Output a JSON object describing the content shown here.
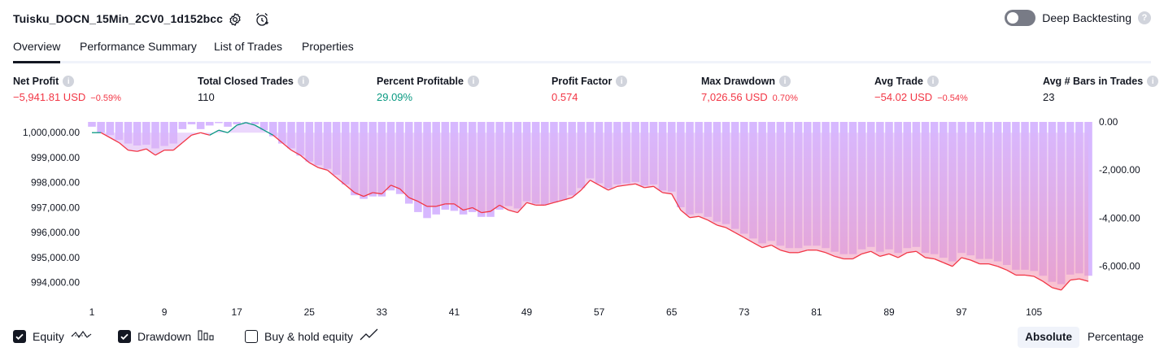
{
  "header": {
    "strategy_name": "Tuisku_DOCN_15Min_2CV0_1d152bcc",
    "deep_backtesting_label": "Deep Backtesting",
    "help_glyph": "?",
    "icons": [
      "settings-icon",
      "add-alert-icon"
    ]
  },
  "tabs": [
    {
      "label": "Overview",
      "active": true
    },
    {
      "label": "Performance Summary",
      "active": false
    },
    {
      "label": "List of Trades",
      "active": false
    },
    {
      "label": "Properties",
      "active": false
    }
  ],
  "metrics": [
    {
      "label": "Net Profit",
      "value": "−5,941.81 USD",
      "pct": "−0.59%",
      "color": "#f23645"
    },
    {
      "label": "Total Closed Trades",
      "value": "110",
      "pct": "",
      "color": "#131722"
    },
    {
      "label": "Percent Profitable",
      "value": "29.09%",
      "pct": "",
      "color": "#089981"
    },
    {
      "label": "Profit Factor",
      "value": "0.574",
      "pct": "",
      "color": "#f23645"
    },
    {
      "label": "Max Drawdown",
      "value": "7,026.56 USD",
      "pct": "0.70%",
      "color": "#f23645"
    },
    {
      "label": "Avg Trade",
      "value": "−54.02 USD",
      "pct": "−0.54%",
      "color": "#f23645"
    },
    {
      "label": "Avg # Bars in Trades",
      "value": "23",
      "pct": "",
      "color": "#131722"
    }
  ],
  "info_glyph": "i",
  "chart_data": {
    "type": "line",
    "equity_axis": {
      "tick_labels": [
        "1,000,000.00",
        "999,000.00",
        "998,000.00",
        "997,000.00",
        "996,000.00",
        "995,000.00",
        "994,000.00"
      ],
      "ticks": [
        1000000,
        999000,
        998000,
        997000,
        996000,
        995000,
        994000
      ],
      "ylim": [
        993600,
        1000430
      ]
    },
    "drawdown_axis": {
      "tick_labels": [
        "0.00",
        "-2,000.00",
        "-4,000.00",
        "-6,000.00"
      ],
      "ticks": [
        0,
        -2000,
        -4000,
        -6000
      ],
      "ylim": [
        -7100,
        0
      ]
    },
    "x_tick_labels": [
      "1",
      "9",
      "17",
      "25",
      "33",
      "41",
      "49",
      "57",
      "65",
      "73",
      "81",
      "89",
      "97",
      "105"
    ],
    "x_ticks": [
      1,
      9,
      17,
      25,
      33,
      41,
      49,
      57,
      65,
      73,
      81,
      89,
      97,
      105
    ],
    "xlim": [
      1,
      111
    ],
    "series": [
      {
        "name": "Equity",
        "color_above": "#089981",
        "color_below": "#f23645",
        "baseline": 1000000,
        "values": [
          1000000,
          1000000,
          999800,
          999600,
          999300,
          999250,
          999350,
          999100,
          999300,
          999300,
          999600,
          999900,
          1000000,
          999900,
          1000100,
          1000000,
          1000300,
          1000400,
          1000300,
          1000100,
          999900,
          999600,
          999300,
          999100,
          998800,
          998600,
          998500,
          998200,
          997900,
          997600,
          997450,
          997600,
          997550,
          997900,
          997750,
          997400,
          997250,
          997050,
          997050,
          997150,
          997150,
          996900,
          997000,
          996800,
          996850,
          997100,
          996900,
          996800,
          997200,
          997100,
          997100,
          997200,
          997300,
          997400,
          997700,
          998100,
          997900,
          997700,
          997850,
          997900,
          997950,
          997800,
          997850,
          997600,
          997550,
          996900,
          996600,
          996650,
          996500,
          996300,
          996200,
          996000,
          995800,
          995600,
          995400,
          995500,
          995300,
          995200,
          995200,
          995300,
          995300,
          995200,
          995050,
          994950,
          994950,
          995150,
          995250,
          995050,
          995150,
          995000,
          995200,
          995250,
          995000,
          994950,
          994800,
          994650,
          995000,
          994900,
          994750,
          994750,
          994650,
          994500,
          994300,
          994300,
          994250,
          994050,
          993800,
          993700,
          994100,
          994150,
          994050
        ]
      },
      {
        "name": "Drawdown",
        "color": "#c9a0ff",
        "type": "bar",
        "values": [
          -200,
          -450,
          -550,
          -750,
          -900,
          -980,
          -950,
          -1100,
          -1000,
          -900,
          -300,
          -100,
          -300,
          -150,
          -50,
          -200,
          -100,
          0,
          -100,
          -350,
          -600,
          -900,
          -1100,
          -1400,
          -1650,
          -1800,
          -1950,
          -2200,
          -2600,
          -3050,
          -3200,
          -3100,
          -3100,
          -2850,
          -3000,
          -3400,
          -3750,
          -4000,
          -3850,
          -3650,
          -3700,
          -3850,
          -3750,
          -3950,
          -3950,
          -3650,
          -3500,
          -3600,
          -3300,
          -3400,
          -3450,
          -3350,
          -3250,
          -3050,
          -2750,
          -2350,
          -2550,
          -2750,
          -2600,
          -2550,
          -2500,
          -2650,
          -2600,
          -2850,
          -2900,
          -3550,
          -3850,
          -3800,
          -3950,
          -4150,
          -4250,
          -4450,
          -4650,
          -4850,
          -5050,
          -4950,
          -5150,
          -5250,
          -5250,
          -5150,
          -5150,
          -5250,
          -5400,
          -5500,
          -5500,
          -5300,
          -5200,
          -5400,
          -5300,
          -5450,
          -5250,
          -5200,
          -5450,
          -5500,
          -5650,
          -5800,
          -5450,
          -5550,
          -5700,
          -5700,
          -5800,
          -5950,
          -6150,
          -6150,
          -6200,
          -6400,
          -6650,
          -6750,
          -6350,
          -6300,
          -6400
        ]
      },
      {
        "name": "Buy & hold equity",
        "visible": false
      }
    ]
  },
  "legend": [
    {
      "label": "Equity",
      "checked": true,
      "icon": "equity-icon"
    },
    {
      "label": "Drawdown",
      "checked": true,
      "icon": "drawdown-icon"
    },
    {
      "label": "Buy & hold equity",
      "checked": false,
      "icon": "buy-hold-icon"
    }
  ],
  "view_modes": [
    {
      "label": "Absolute",
      "active": true
    },
    {
      "label": "Percentage",
      "active": false
    }
  ]
}
